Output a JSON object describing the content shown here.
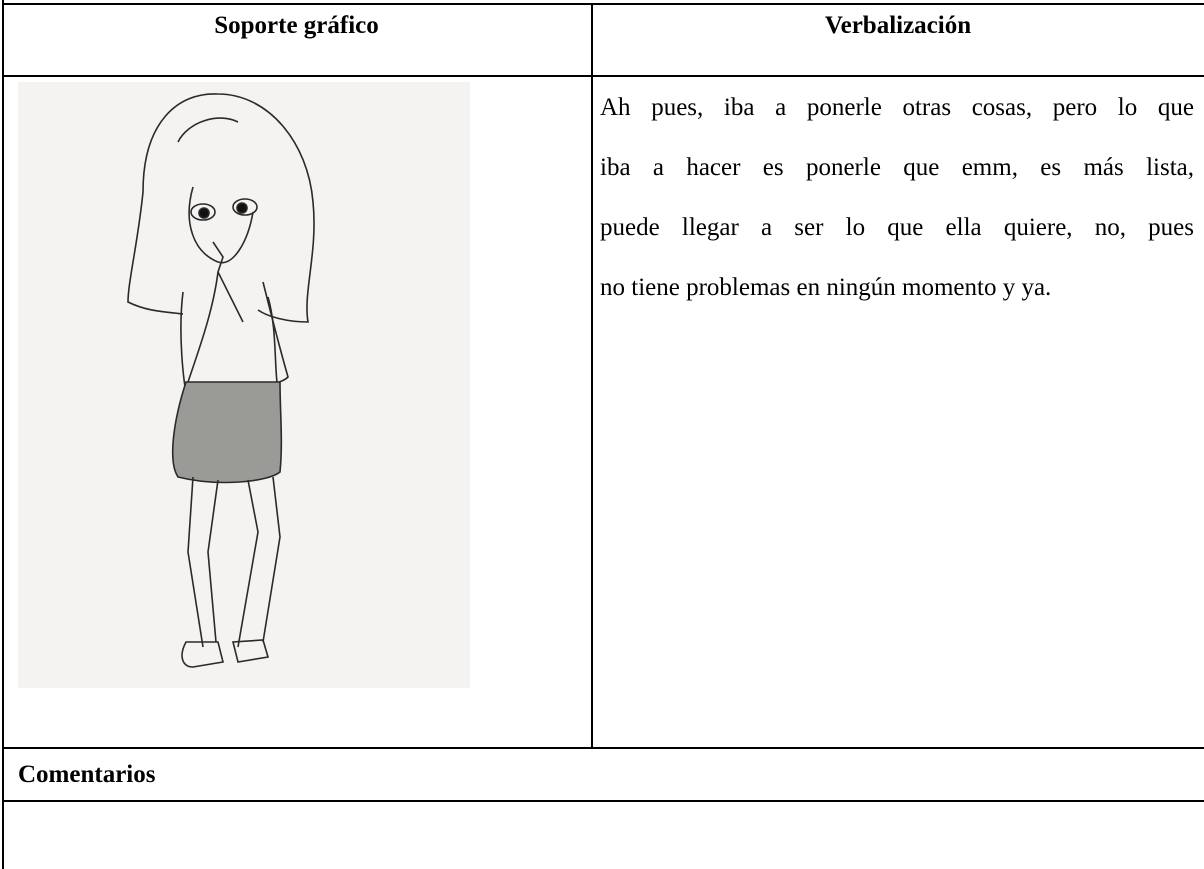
{
  "table": {
    "headers": [
      "Soporte gráfico",
      "Verbalización"
    ],
    "verbalization_lines": [
      "Ah pues, iba a ponerle otras cosas, pero lo que",
      "iba a hacer es ponerle que emm, es más lista,",
      "puede llegar a ser lo que ella quiere, no, pues",
      "no tiene problemas en ningún momento y ya."
    ],
    "comments_label": "Comentarios"
  }
}
